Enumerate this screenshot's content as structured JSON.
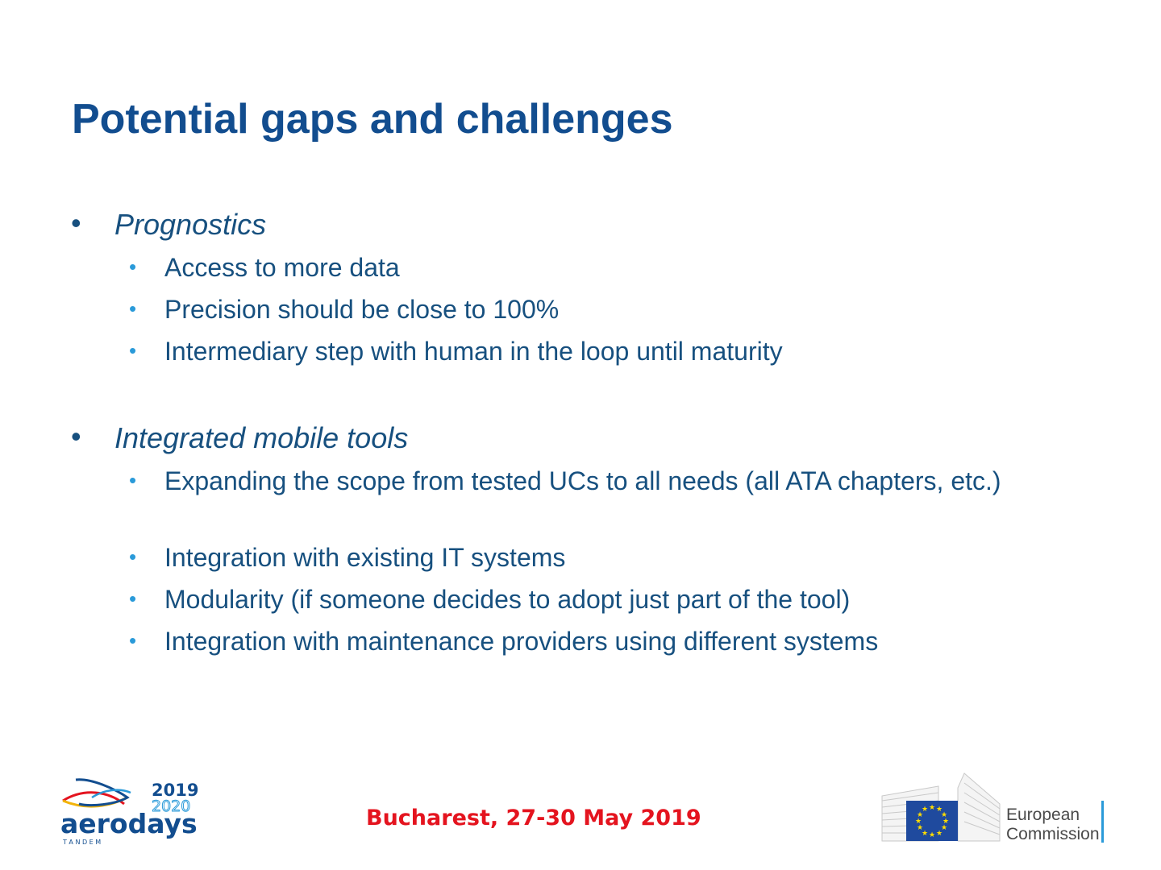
{
  "slide": {
    "title": "Potential gaps and challenges",
    "sections": [
      {
        "heading": "Prognostics",
        "items": [
          "Access to more data",
          "Precision should be close to 100%",
          "Intermediary step with human in the loop until maturity"
        ]
      },
      {
        "heading": "Integrated mobile tools",
        "items": [
          "Expanding the scope from tested UCs to all needs (all ATA chapters, etc.)",
          "Integration with existing IT systems",
          "Modularity (if someone decides to adopt just part of the tool)",
          "Integration with maintenance providers using different systems"
        ]
      }
    ]
  },
  "footer": {
    "event": "Bucharest, 27-30 May 2019",
    "aerodays_logo": {
      "year_top": "2019",
      "year_bottom": "2020",
      "word": "aerodays",
      "tagline": "T A N D E M"
    },
    "ec_logo": {
      "line1": "European",
      "line2": "Commission"
    }
  },
  "colors": {
    "title": "#124d8f",
    "text": "#17507f",
    "sub_bullet": "#2a9ad9",
    "event": "#e4141f",
    "eu_flag": "#1f4a9e",
    "eu_star": "#ffdd00"
  }
}
